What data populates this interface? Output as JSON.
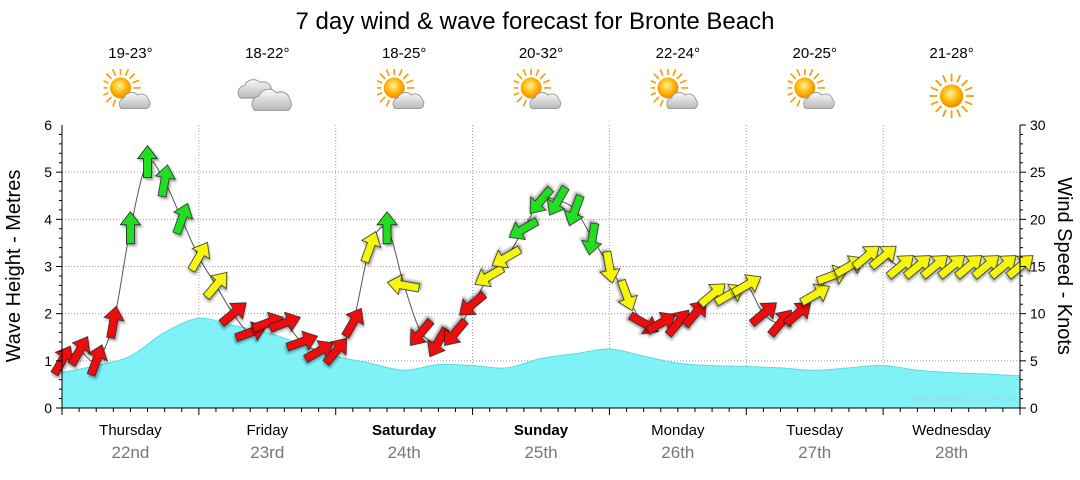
{
  "title": "7 day wind & wave forecast for Bronte Beach",
  "watermark": "www.seabreeze.com.au",
  "days": [
    {
      "name": "Thursday",
      "date": "22nd",
      "temp": "19-23°",
      "icon": "partly-cloudy-sun-icon",
      "bold": false
    },
    {
      "name": "Friday",
      "date": "23rd",
      "temp": "18-22°",
      "icon": "cloud-icon",
      "bold": false
    },
    {
      "name": "Saturday",
      "date": "24th",
      "temp": "18-25°",
      "icon": "partly-cloudy-sun-icon",
      "bold": true
    },
    {
      "name": "Sunday",
      "date": "25th",
      "temp": "20-32°",
      "icon": "partly-cloudy-sun-icon",
      "bold": true
    },
    {
      "name": "Monday",
      "date": "26th",
      "temp": "22-24°",
      "icon": "partly-cloudy-sun-icon",
      "bold": false
    },
    {
      "name": "Tuesday",
      "date": "27th",
      "temp": "20-25°",
      "icon": "partly-cloudy-sun-icon",
      "bold": false
    },
    {
      "name": "Wednesday",
      "date": "28th",
      "temp": "21-28°",
      "icon": "sun-icon",
      "bold": false
    }
  ],
  "colors": {
    "wave_fill": "#7ff2f8",
    "wave_stroke": "#5fd8e0",
    "arrow_red": "#ee1111",
    "arrow_yellow": "#f5f50a",
    "arrow_green": "#22dd22",
    "grid": "#999999"
  },
  "chart_data": {
    "type": "area",
    "x_unit": "days from Thursday 22nd 00:00",
    "xlim": [
      0,
      7
    ],
    "left_axis": {
      "label": "Wave Height - Metres",
      "ylim": [
        0,
        6
      ],
      "ticks": [
        0,
        1,
        2,
        3,
        4,
        5,
        6
      ]
    },
    "right_axis": {
      "label": "Wind Speed - Knots",
      "ylim": [
        0,
        30
      ],
      "ticks": [
        0,
        5,
        10,
        15,
        20,
        25,
        30
      ]
    },
    "wave_height": {
      "x": [
        0,
        0.25,
        0.5,
        0.75,
        1.0,
        1.25,
        1.5,
        1.75,
        2.0,
        2.25,
        2.5,
        2.75,
        3.0,
        3.25,
        3.5,
        3.75,
        4.0,
        4.25,
        4.5,
        4.75,
        5.0,
        5.25,
        5.5,
        5.75,
        6.0,
        6.25,
        6.5,
        6.75,
        7.0
      ],
      "values": [
        0.75,
        0.9,
        1.1,
        1.6,
        1.9,
        1.75,
        1.6,
        1.35,
        1.1,
        0.95,
        0.8,
        0.92,
        0.9,
        0.85,
        1.05,
        1.15,
        1.25,
        1.1,
        0.95,
        0.9,
        0.88,
        0.85,
        0.8,
        0.85,
        0.9,
        0.8,
        0.75,
        0.72,
        0.68
      ]
    },
    "wind": {
      "x": [
        0,
        0.125,
        0.25,
        0.375,
        0.5,
        0.625,
        0.75,
        0.875,
        1.0,
        1.125,
        1.25,
        1.375,
        1.5,
        1.625,
        1.75,
        1.875,
        2.0,
        2.125,
        2.25,
        2.375,
        2.5,
        2.625,
        2.75,
        2.875,
        3.0,
        3.125,
        3.25,
        3.375,
        3.5,
        3.625,
        3.75,
        3.875,
        4.0,
        4.125,
        4.25,
        4.375,
        4.5,
        4.625,
        4.75,
        4.875,
        5.0,
        5.125,
        5.25,
        5.375,
        5.5,
        5.625,
        5.75,
        5.875,
        6.0,
        6.125,
        6.25,
        6.375,
        6.5,
        6.625,
        6.75,
        6.875,
        7.0
      ],
      "knots": [
        5,
        6,
        5,
        9,
        19,
        26,
        24,
        20,
        16,
        13,
        10,
        8,
        9,
        9,
        7,
        6,
        6,
        9,
        17,
        19,
        13,
        8,
        7,
        8,
        11,
        14,
        16,
        19,
        22,
        22,
        21,
        18,
        15,
        12,
        9,
        9,
        9,
        10,
        12,
        12,
        13,
        10,
        9,
        10,
        12,
        14,
        15,
        16,
        16,
        15,
        15,
        15,
        15,
        15,
        15,
        15,
        15
      ],
      "direction_deg": [
        210,
        210,
        200,
        190,
        180,
        180,
        190,
        200,
        210,
        220,
        230,
        250,
        250,
        250,
        250,
        240,
        220,
        210,
        200,
        180,
        100,
        40,
        30,
        40,
        50,
        60,
        60,
        60,
        40,
        30,
        20,
        10,
        350,
        340,
        300,
        240,
        220,
        220,
        230,
        240,
        240,
        230,
        220,
        230,
        240,
        250,
        240,
        230,
        230,
        230,
        230,
        230,
        230,
        230,
        230,
        230,
        230
      ],
      "colour_bands_knots": {
        "red_below": 12,
        "yellow_below": 18,
        "green_from": 18
      }
    }
  }
}
